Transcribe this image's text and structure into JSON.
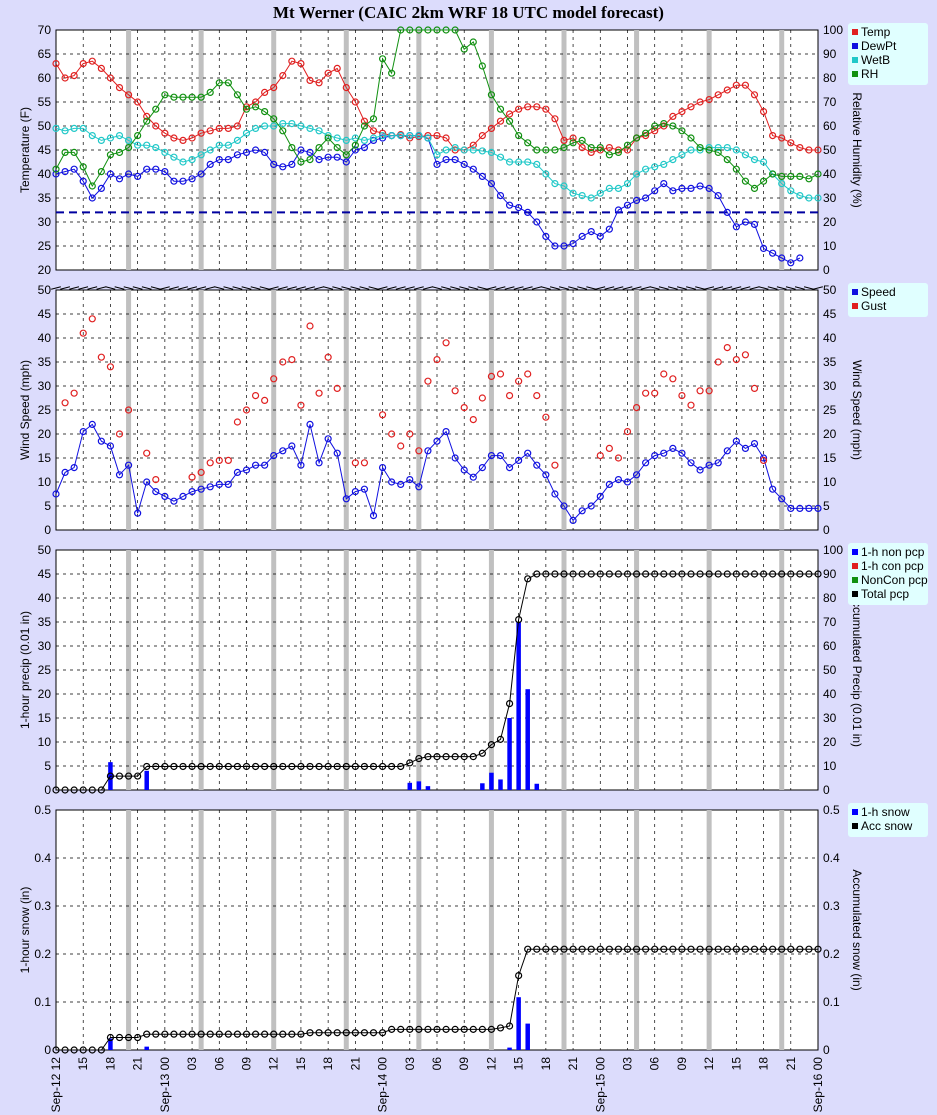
{
  "title": "Mt Werner (CAIC 2km WRF 18 UTC model forecast)",
  "x_tick_labels": [
    "Sep-12 12",
    "15",
    "18",
    "21",
    "Sep-13 00",
    "03",
    "06",
    "09",
    "12",
    "15",
    "18",
    "21",
    "Sep-14 00",
    "03",
    "06",
    "09",
    "12",
    "15",
    "18",
    "21",
    "Sep-15 00",
    "03",
    "06",
    "09",
    "12",
    "15",
    "18",
    "21",
    "Sep-16 00"
  ],
  "colors": {
    "temp": "#e02020",
    "dewpt": "#1010e0",
    "wetb": "#20c8c8",
    "rh": "#109010",
    "gust": "#e02020",
    "speed": "#1010e0",
    "bar": "#0000ff",
    "acc": "#000000",
    "freeze": "#0000a0",
    "background": "#dcdcfc",
    "panel": "#ffffff",
    "legend_bg": "#e0ffff"
  },
  "chart_data": [
    {
      "type": "line",
      "ylabel": "Temperature (F)",
      "ylabel_right": "Relative Humidity (%)",
      "ylim": [
        20,
        70
      ],
      "ylim_right": [
        0,
        100
      ],
      "yticks": [
        20,
        25,
        30,
        35,
        40,
        45,
        50,
        55,
        60,
        65,
        70
      ],
      "yticks_right": [
        0,
        10,
        20,
        30,
        40,
        50,
        60,
        70,
        80,
        90,
        100
      ],
      "freezing_line": 32,
      "legend": [
        "Temp",
        "DewPt",
        "WetB",
        "RH"
      ],
      "series": [
        {
          "name": "Temp",
          "axis": "left",
          "values": [
            63,
            60,
            60.5,
            63,
            63.5,
            62,
            60,
            58,
            56.5,
            55,
            52,
            50,
            48.5,
            47.5,
            47,
            47.5,
            48.5,
            49,
            49.5,
            49.5,
            50,
            54,
            55,
            57,
            58,
            60.5,
            63.5,
            63,
            59.5,
            59,
            61,
            62,
            58,
            55,
            51,
            49,
            48.5,
            48,
            48.2,
            47.5,
            47.8,
            48,
            48,
            47.5,
            45,
            45,
            46,
            48,
            49.5,
            51,
            52.5,
            53.5,
            54,
            54,
            53.5,
            51.5,
            47,
            47.5,
            45.5,
            44.5,
            45,
            45.5,
            45,
            45,
            47.5,
            48,
            49,
            50,
            52,
            53,
            54,
            55,
            55.5,
            56.5,
            57.5,
            58.5,
            58.5,
            56.5,
            53,
            48,
            47.5,
            46.5,
            45.5,
            45,
            45
          ]
        },
        {
          "name": "DewPt",
          "axis": "left",
          "values": [
            40,
            40.5,
            41,
            38.5,
            35,
            37,
            40,
            39,
            40,
            39.5,
            41,
            41,
            40.5,
            38.5,
            38.5,
            39,
            40,
            42,
            43,
            43,
            44,
            44.5,
            45,
            44.5,
            42,
            41.5,
            42,
            45,
            44.5,
            43,
            43.5,
            43.5,
            42.5,
            45,
            45.5,
            47,
            47.5,
            48,
            48,
            48,
            48,
            47.5,
            42,
            43,
            43,
            42,
            41,
            39.5,
            38,
            35.5,
            33.5,
            33,
            32,
            30,
            27,
            25,
            25,
            25.5,
            27,
            28,
            27,
            28.5,
            32.5,
            33.5,
            34.5,
            35,
            36.5,
            38,
            36.5,
            37,
            37,
            37.5,
            37,
            35.5,
            32,
            29,
            30,
            29.5,
            24.5,
            23.5,
            22.5,
            21.5,
            22.5
          ]
        },
        {
          "name": "WetB",
          "axis": "left",
          "values": [
            49.5,
            49,
            49.5,
            49.5,
            48,
            47,
            47.5,
            48,
            47,
            46,
            46,
            45.5,
            44.5,
            43.5,
            42.5,
            43,
            44,
            45,
            46,
            46,
            47,
            48.5,
            49.5,
            50,
            50,
            50.5,
            50.5,
            50,
            49.5,
            49,
            48,
            47.5,
            47,
            47.5,
            47,
            47.5,
            48,
            48,
            48,
            48,
            48,
            47.5,
            44,
            45,
            45.5,
            45,
            45,
            44.8,
            44.5,
            43.5,
            42.5,
            42.5,
            42.5,
            42,
            40,
            38,
            37.5,
            36,
            35.5,
            35,
            36,
            37,
            37,
            38,
            40,
            41,
            41.5,
            42,
            43,
            44,
            45,
            45,
            45.5,
            45.5,
            45.5,
            45,
            44,
            43,
            42.5,
            40,
            38,
            36.5,
            35.5,
            35,
            35
          ]
        },
        {
          "name": "RH",
          "axis": "right",
          "values": [
            42,
            49,
            49,
            43,
            35,
            41,
            48,
            49,
            51,
            56,
            62,
            67,
            73,
            72,
            72,
            72,
            72,
            74,
            78,
            78,
            73,
            67,
            68,
            66,
            63,
            58,
            51,
            45,
            46,
            51,
            55,
            51,
            48,
            52,
            60,
            63,
            88,
            82,
            100,
            100,
            100,
            100,
            100,
            100,
            100,
            92,
            95,
            85,
            73,
            67,
            62,
            56,
            53,
            50,
            50,
            50,
            51,
            53,
            54,
            51,
            51,
            48,
            49,
            52,
            55,
            57,
            60,
            61,
            60,
            58,
            55,
            51,
            50,
            49,
            46,
            42,
            37,
            34,
            37,
            40,
            39,
            39,
            39,
            38,
            40
          ]
        }
      ]
    },
    {
      "type": "scatter",
      "ylabel": "Wind Speed (mph)",
      "ylabel_right": "Wind Speed (mph)",
      "ylim": [
        0,
        50
      ],
      "yticks": [
        0,
        5,
        10,
        15,
        20,
        25,
        30,
        35,
        40,
        45,
        50
      ],
      "legend": [
        "Speed",
        "Gust"
      ],
      "wind_barbs": true,
      "series": [
        {
          "name": "Speed",
          "line": true,
          "values": [
            7.5,
            12,
            13,
            20.5,
            22,
            18.5,
            17.5,
            11.5,
            13.5,
            3.5,
            10,
            8,
            7,
            6,
            7,
            8,
            8.5,
            9,
            9.5,
            9.5,
            12,
            12.5,
            13.5,
            13.5,
            15.5,
            16.5,
            17.5,
            13.5,
            22,
            14,
            19,
            16,
            6.5,
            8,
            8.5,
            3,
            13,
            10,
            9.5,
            10.5,
            9,
            16.5,
            18.5,
            20.5,
            15,
            12.5,
            11,
            13,
            15.5,
            15.5,
            13,
            14.5,
            16,
            13.5,
            11.5,
            7.5,
            5,
            2,
            4,
            5,
            7,
            9.5,
            10.5,
            10,
            11.5,
            14,
            15.5,
            16,
            17,
            16,
            14,
            12.5,
            13.5,
            14,
            16.5,
            18.5,
            17,
            18,
            15,
            8.5,
            6.5,
            4.5,
            4.5,
            4.5,
            4.5
          ]
        },
        {
          "name": "Gust",
          "line": false,
          "values": [
            null,
            26.5,
            28.5,
            41,
            44,
            36,
            34,
            20,
            25,
            null,
            16,
            10.5,
            null,
            null,
            null,
            11,
            12,
            14,
            14.5,
            14.5,
            22.5,
            25,
            28,
            27,
            31.5,
            35,
            35.5,
            26,
            42.5,
            28.5,
            36,
            29.5,
            null,
            14,
            14,
            null,
            24,
            20,
            17.5,
            20,
            16.5,
            31,
            35.5,
            39,
            29,
            25.5,
            23,
            27.5,
            32,
            32.5,
            28,
            31,
            32.5,
            28,
            23.5,
            13.5,
            null,
            null,
            null,
            null,
            15.5,
            17,
            15,
            20.5,
            25.5,
            28.5,
            28.5,
            32.5,
            31.5,
            28,
            26,
            29,
            29,
            35,
            38,
            35.5,
            36.5,
            29.5,
            14.5,
            null,
            null,
            null,
            null,
            null
          ]
        }
      ]
    },
    {
      "type": "bar",
      "ylabel": "1-hour precip (0.01 in)",
      "ylabel_right": "Accumulated Precip (0.01 in)",
      "ylim": [
        0,
        50
      ],
      "ylim_right": [
        0,
        100
      ],
      "yticks": [
        0,
        5,
        10,
        15,
        20,
        25,
        30,
        35,
        40,
        45,
        50
      ],
      "yticks_right": [
        0,
        10,
        20,
        30,
        40,
        50,
        60,
        70,
        80,
        90,
        100
      ],
      "legend": [
        "1-h non pcp",
        "1-h con pcp",
        "NonCon pcp",
        "Total pcp"
      ],
      "bars": {
        "name": "1-h non pcp",
        "values": [
          0,
          0,
          0,
          0,
          0,
          0,
          5.8,
          0,
          0,
          0,
          4,
          0,
          0,
          0,
          0,
          0,
          0,
          0,
          0,
          0,
          0,
          0,
          0,
          0,
          0,
          0,
          0,
          0,
          0,
          0,
          0,
          0,
          0,
          0,
          0,
          0,
          0,
          0,
          0,
          1.5,
          1.8,
          0.8,
          0,
          0,
          0,
          0,
          0,
          1.4,
          3.6,
          2.2,
          15,
          35,
          21,
          1.3,
          0,
          0,
          0,
          0,
          0,
          0,
          0,
          0,
          0,
          0,
          0,
          0,
          0,
          0,
          0,
          0,
          0,
          0,
          0,
          0,
          0,
          0,
          0,
          0,
          0,
          0,
          0,
          0,
          0,
          0,
          0
        ]
      },
      "series": [
        {
          "name": "Total pcp",
          "axis": "right",
          "values": [
            0,
            0,
            0,
            0,
            0,
            0,
            5.8,
            5.8,
            5.8,
            5.8,
            9.8,
            9.8,
            9.8,
            9.8,
            9.8,
            9.8,
            9.8,
            9.8,
            9.8,
            9.8,
            9.8,
            9.8,
            9.8,
            9.8,
            9.8,
            9.8,
            9.8,
            9.8,
            9.8,
            9.8,
            9.8,
            9.8,
            9.8,
            9.8,
            9.8,
            9.8,
            9.8,
            9.8,
            9.8,
            11.3,
            13.1,
            13.9,
            13.9,
            13.9,
            13.9,
            13.9,
            13.9,
            15.3,
            18.9,
            21.1,
            36,
            71,
            88,
            90,
            90,
            90,
            90,
            90,
            90,
            90,
            90,
            90,
            90,
            90,
            90,
            90,
            90,
            90,
            90,
            90,
            90,
            90,
            90,
            90,
            90,
            90,
            90,
            90,
            90,
            90,
            90,
            90,
            90,
            90,
            90
          ]
        }
      ]
    },
    {
      "type": "bar",
      "ylabel": "1-hour snow (in)",
      "ylabel_right": "Accumulated snow (in)",
      "ylim": [
        0,
        0.5
      ],
      "ylim_right": [
        0,
        0.5
      ],
      "yticks": [
        0,
        0.1,
        0.2,
        0.3,
        0.4,
        0.5
      ],
      "yticks_right": [
        0,
        0.1,
        0.2,
        0.3,
        0.4,
        0.5
      ],
      "legend": [
        "1-h snow",
        "Acc snow"
      ],
      "bars": {
        "name": "1-h snow",
        "values": [
          0,
          0,
          0,
          0,
          0,
          0,
          0.024,
          0,
          0,
          0,
          0.007,
          0,
          0,
          0,
          0,
          0,
          0,
          0,
          0,
          0,
          0,
          0,
          0,
          0,
          0,
          0,
          0,
          0,
          0,
          0,
          0,
          0,
          0,
          0,
          0,
          0,
          0,
          0,
          0,
          0,
          0,
          0,
          0,
          0,
          0,
          0,
          0,
          0,
          0,
          0,
          0.005,
          0.11,
          0.055,
          0,
          0,
          0,
          0,
          0,
          0,
          0,
          0,
          0,
          0,
          0,
          0,
          0,
          0,
          0,
          0,
          0,
          0,
          0,
          0,
          0,
          0,
          0,
          0,
          0,
          0,
          0,
          0,
          0,
          0,
          0,
          0
        ]
      },
      "series": [
        {
          "name": "Acc snow",
          "axis": "right",
          "values": [
            0,
            0,
            0,
            0,
            0,
            0,
            0.026,
            0.026,
            0.026,
            0.026,
            0.033,
            0.033,
            0.033,
            0.033,
            0.033,
            0.033,
            0.033,
            0.033,
            0.033,
            0.033,
            0.033,
            0.033,
            0.033,
            0.033,
            0.033,
            0.033,
            0.033,
            0.033,
            0.036,
            0.036,
            0.036,
            0.036,
            0.036,
            0.036,
            0.036,
            0.036,
            0.036,
            0.043,
            0.043,
            0.043,
            0.043,
            0.043,
            0.043,
            0.043,
            0.043,
            0.043,
            0.043,
            0.043,
            0.043,
            0.046,
            0.05,
            0.155,
            0.21,
            0.21,
            0.21,
            0.21,
            0.21,
            0.21,
            0.21,
            0.21,
            0.21,
            0.21,
            0.21,
            0.21,
            0.21,
            0.21,
            0.21,
            0.21,
            0.21,
            0.21,
            0.21,
            0.21,
            0.21,
            0.21,
            0.21,
            0.21,
            0.21,
            0.21,
            0.21,
            0.21,
            0.21,
            0.21,
            0.21,
            0.21,
            0.21
          ]
        }
      ]
    }
  ]
}
